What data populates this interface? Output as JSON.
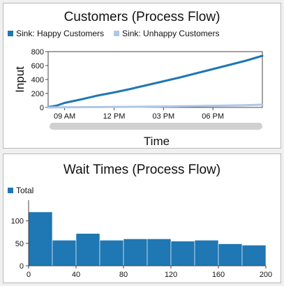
{
  "colors": {
    "happy": "#1f77b4",
    "unhappy": "#aec7e8",
    "bars": "#1f77b4",
    "scrollbar": "#d0d0d0"
  },
  "chart_data": [
    {
      "type": "line",
      "title": "Customers (Process Flow)",
      "xlabel": "Time",
      "ylabel": "Input",
      "xlim": [
        "08:00",
        "21:00"
      ],
      "ylim": [
        0,
        800
      ],
      "yticks": [
        0,
        200,
        400,
        600,
        800
      ],
      "xticks": [
        "09 AM",
        "12 PM",
        "03 PM",
        "06 PM"
      ],
      "legend_position": "top-left",
      "series": [
        {
          "name": "Sink: Happy Customers",
          "x": [
            "08:00",
            "08:30",
            "09:00",
            "10:00",
            "11:00",
            "12:00",
            "13:00",
            "14:00",
            "15:00",
            "16:00",
            "17:00",
            "18:00",
            "19:00",
            "20:00",
            "21:00"
          ],
          "values": [
            5,
            25,
            65,
            115,
            170,
            215,
            265,
            320,
            375,
            430,
            490,
            550,
            610,
            670,
            740
          ]
        },
        {
          "name": "Sink: Unhappy Customers",
          "x": [
            "08:00",
            "09:00",
            "10:00",
            "11:00",
            "12:00",
            "13:00",
            "14:00",
            "15:00",
            "16:00",
            "17:00",
            "18:00",
            "19:00",
            "20:00",
            "21:00"
          ],
          "values": [
            0,
            2,
            4,
            5,
            7,
            9,
            11,
            14,
            17,
            20,
            24,
            28,
            33,
            40
          ]
        }
      ],
      "scrollbar": true
    },
    {
      "type": "bar",
      "title": "Wait Times (Process Flow)",
      "legend_position": "top-left",
      "xlim": [
        0,
        200
      ],
      "ylim": [
        0,
        140
      ],
      "xticks": [
        0,
        40,
        80,
        120,
        160,
        200
      ],
      "yticks": [
        0,
        50,
        100
      ],
      "bin_width": 20,
      "series": [
        {
          "name": "Total",
          "bins": [
            0,
            20,
            40,
            60,
            80,
            100,
            120,
            140,
            160,
            180
          ],
          "values": [
            120,
            57,
            72,
            57,
            60,
            60,
            55,
            57,
            49,
            46
          ]
        }
      ]
    }
  ]
}
